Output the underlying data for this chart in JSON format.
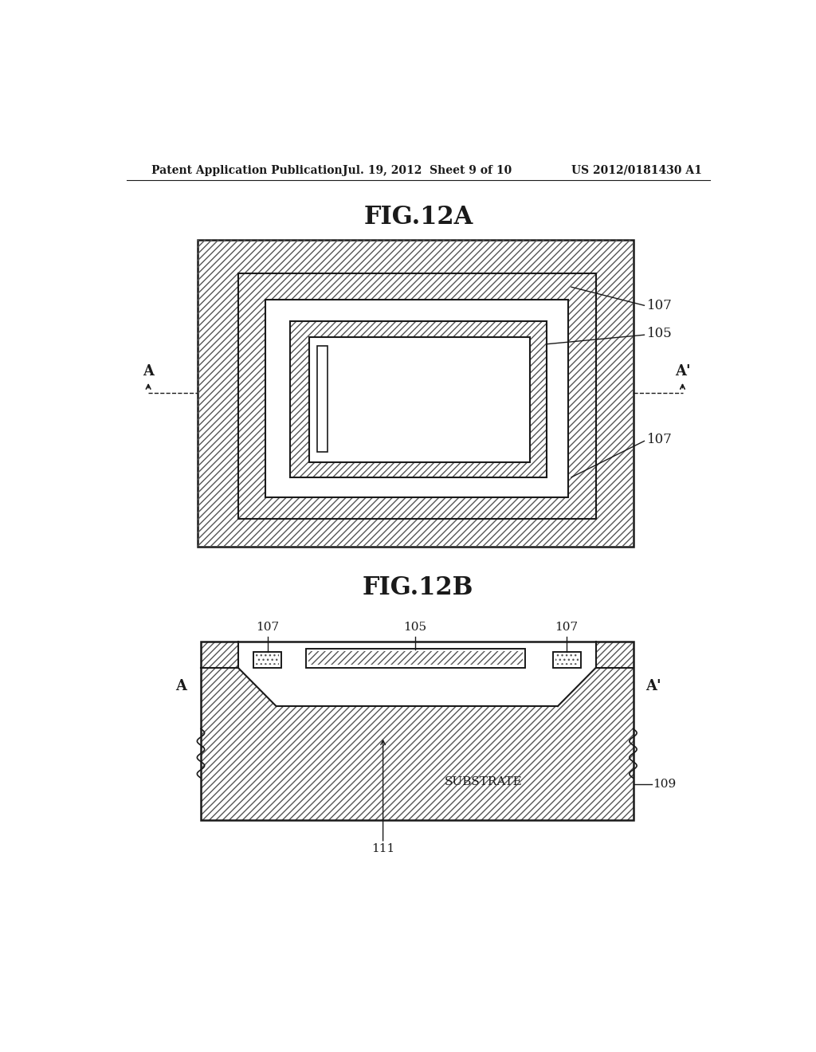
{
  "fig_width": 10.24,
  "fig_height": 13.2,
  "background_color": "#ffffff",
  "header_left": "Patent Application Publication",
  "header_center": "Jul. 19, 2012  Sheet 9 of 10",
  "header_right": "US 2012/0181430 A1",
  "fig12a_title": "FIG.12A",
  "fig12b_title": "FIG.12B",
  "text_color": "#1a1a1a",
  "line_color": "#1a1a1a",
  "hatch_color": "#555555"
}
